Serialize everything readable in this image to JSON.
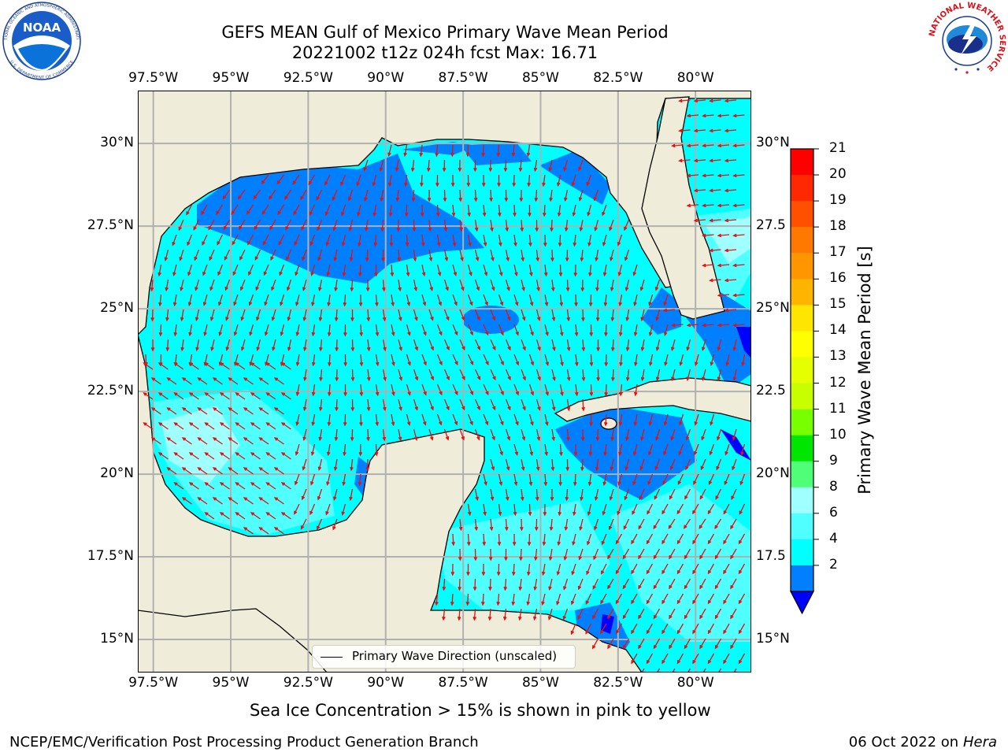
{
  "header": {
    "title_line1": "GEFS MEAN Gulf of Mexico Primary Wave Mean Period",
    "title_line2": "20221002 t12z 024h fcst   Max: 16.71"
  },
  "logos": {
    "noaa": {
      "center_text": "NOAA",
      "ring_text": "NATIONAL OCEANIC AND ATMOSPHERIC ADMINISTRATION",
      "bottom_text": "U.S. DEPARTMENT OF COMMERCE"
    },
    "nws": {
      "ring_text": "NATIONAL WEATHER SERVICE"
    }
  },
  "map": {
    "lon_ticks": [
      "97.5°W",
      "95°W",
      "92.5°W",
      "90°W",
      "87.5°W",
      "85°W",
      "82.5°W",
      "80°W"
    ],
    "lon_values": [
      -97.5,
      -95,
      -92.5,
      -90,
      -87.5,
      -85,
      -82.5,
      -80
    ],
    "lat_ticks_left": [
      "30°N",
      "27.5°N",
      "25°N",
      "22.5°N",
      "20°N",
      "17.5°N",
      "15°N"
    ],
    "lat_ticks_right": [
      "30°N",
      "27.5",
      "25°N",
      "22.5",
      "20°N",
      "17.5",
      "15°N"
    ],
    "lat_values": [
      30,
      27.5,
      25,
      22.5,
      20,
      17.5,
      15
    ],
    "extent": {
      "lon_min": -98,
      "lon_max": -78.2,
      "lat_min": 14,
      "lat_max": 31.6
    },
    "legend_label": "Primary Wave Direction (unscaled)",
    "colors": {
      "land": "#efedda",
      "grid": "#b0b0b0",
      "arrow": "#e8100e"
    }
  },
  "colorbar": {
    "label": "Primary Wave Mean Period [s]",
    "ticks": [
      "21",
      "20",
      "19",
      "18",
      "17",
      "16",
      "15",
      "14",
      "13",
      "12",
      "11",
      "10",
      "9",
      "8",
      "6",
      "4",
      "2"
    ],
    "colors": [
      "#ff0000",
      "#ff2800",
      "#ff5000",
      "#ff7800",
      "#ff9600",
      "#ffb400",
      "#ffe600",
      "#ffff00",
      "#e6ff00",
      "#c8ff00",
      "#78ff00",
      "#00e600",
      "#50ff78",
      "#a0ffff",
      "#50ffff",
      "#00ffff",
      "#0080ff"
    ],
    "under_color": "#0000ff"
  },
  "note": "Sea Ice Concentration > 15% is shown in pink to yellow",
  "footer": {
    "left": "NCEP/EMC/Verification Post Processing Product Generation Branch",
    "right_prefix": "06 Oct 2022 on ",
    "right_host": "Hera"
  }
}
